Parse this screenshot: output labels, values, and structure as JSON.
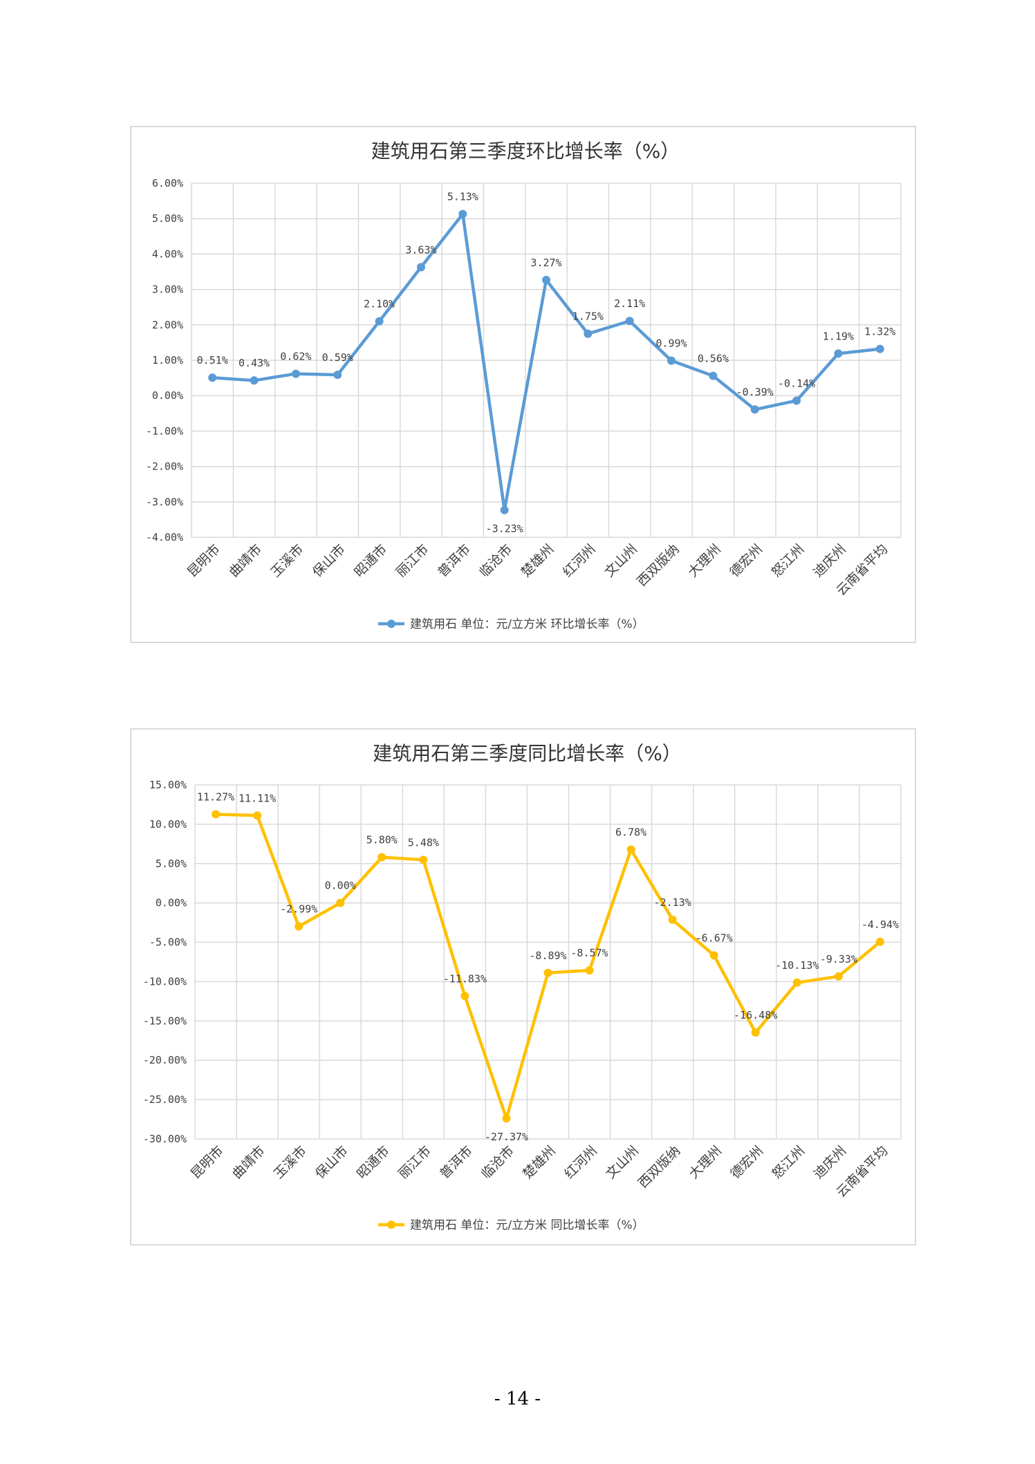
{
  "page": {
    "page_number": "- 14 -"
  },
  "chart_data": [
    {
      "type": "line",
      "title": "建筑用石第三季度环比增长率（%）",
      "categories": [
        "昆明市",
        "曲靖市",
        "玉溪市",
        "保山市",
        "昭通市",
        "丽江市",
        "普洱市",
        "临沧市",
        "楚雄州",
        "红河州",
        "文山州",
        "西双版纳",
        "大理州",
        "德宏州",
        "怒江州",
        "迪庆州",
        "云南省平均"
      ],
      "series": [
        {
          "name": "建筑用石 单位：元/立方米 环比增长率（%）",
          "values": [
            0.51,
            0.43,
            0.62,
            0.59,
            2.1,
            3.63,
            5.13,
            -3.23,
            3.27,
            1.75,
            2.11,
            0.99,
            0.56,
            -0.39,
            -0.14,
            1.19,
            1.32
          ],
          "labels": [
            "0.51%",
            "0.43%",
            "0.62%",
            "0.59%",
            "2.10%",
            "3.63%",
            "5.13%",
            "-3.23%",
            "3.27%",
            "1.75%",
            "2.11%",
            "0.99%",
            "0.56%",
            "-0.39%",
            "-0.14%",
            "1.19%",
            "1.32%"
          ]
        }
      ],
      "color": "#5b9bd5",
      "ylim": [
        -4,
        6
      ],
      "yticks": [
        6,
        5,
        4,
        3,
        2,
        1,
        0,
        -1,
        -2,
        -3,
        -4
      ],
      "ytick_labels": [
        "6.00%",
        "5.00%",
        "4.00%",
        "3.00%",
        "2.00%",
        "1.00%",
        "0.00%",
        "-1.00%",
        "-2.00%",
        "-3.00%",
        "-4.00%"
      ],
      "grid": true,
      "legend_position": "bottom"
    },
    {
      "type": "line",
      "title": "建筑用石第三季度同比增长率（%）",
      "categories": [
        "昆明市",
        "曲靖市",
        "玉溪市",
        "保山市",
        "昭通市",
        "丽江市",
        "普洱市",
        "临沧市",
        "楚雄州",
        "红河州",
        "文山州",
        "西双版纳",
        "大理州",
        "德宏州",
        "怒江州",
        "迪庆州",
        "云南省平均"
      ],
      "series": [
        {
          "name": "建筑用石 单位：元/立方米 同比增长率（%）",
          "values": [
            11.27,
            11.11,
            -2.99,
            0.0,
            5.8,
            5.48,
            -11.83,
            -27.37,
            -8.89,
            -8.57,
            6.78,
            -2.13,
            -6.67,
            -16.48,
            -10.13,
            -9.33,
            -4.94
          ],
          "labels": [
            "11.27%",
            "11.11%",
            "-2.99%",
            "0.00%",
            "5.80%",
            "5.48%",
            "-11.83%",
            "-27.37%",
            "-8.89%",
            "-8.57%",
            "6.78%",
            "-2.13%",
            "-6.67%",
            "-16.48%",
            "-10.13%",
            "-9.33%",
            "-4.94%"
          ]
        }
      ],
      "color": "#ffc000",
      "ylim": [
        -30,
        15
      ],
      "yticks": [
        15,
        10,
        5,
        0,
        -5,
        -10,
        -15,
        -20,
        -25,
        -30
      ],
      "ytick_labels": [
        "15.00%",
        "10.00%",
        "5.00%",
        "0.00%",
        "-5.00%",
        "-10.00%",
        "-15.00%",
        "-20.00%",
        "-25.00%",
        "-30.00%"
      ],
      "grid": true,
      "legend_position": "bottom"
    }
  ]
}
